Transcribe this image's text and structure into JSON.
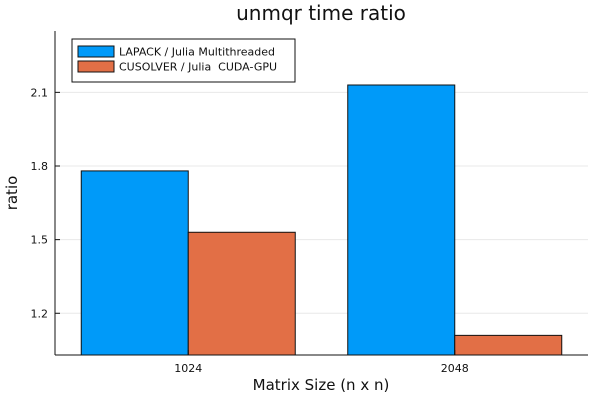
{
  "chart_data": {
    "type": "bar",
    "title": "unmqr time ratio",
    "xlabel": "Matrix Size (n x n)",
    "ylabel": "ratio",
    "categories": [
      "1024",
      "2048"
    ],
    "series": [
      {
        "name": "LAPACK / Julia Multithreaded",
        "color": "#009af9",
        "values": [
          1.78,
          2.13
        ]
      },
      {
        "name": "CUSOLVER / Julia  CUDA-GPU",
        "color": "#e26f46",
        "values": [
          1.53,
          1.11
        ]
      }
    ],
    "ylim": [
      1.03,
      2.35
    ],
    "yticks": [
      1.2,
      1.5,
      1.8,
      2.1
    ],
    "ytick_labels": [
      "1.2",
      "1.5",
      "1.8",
      "2.1"
    ],
    "grid": true,
    "legend_position": "top-left"
  }
}
